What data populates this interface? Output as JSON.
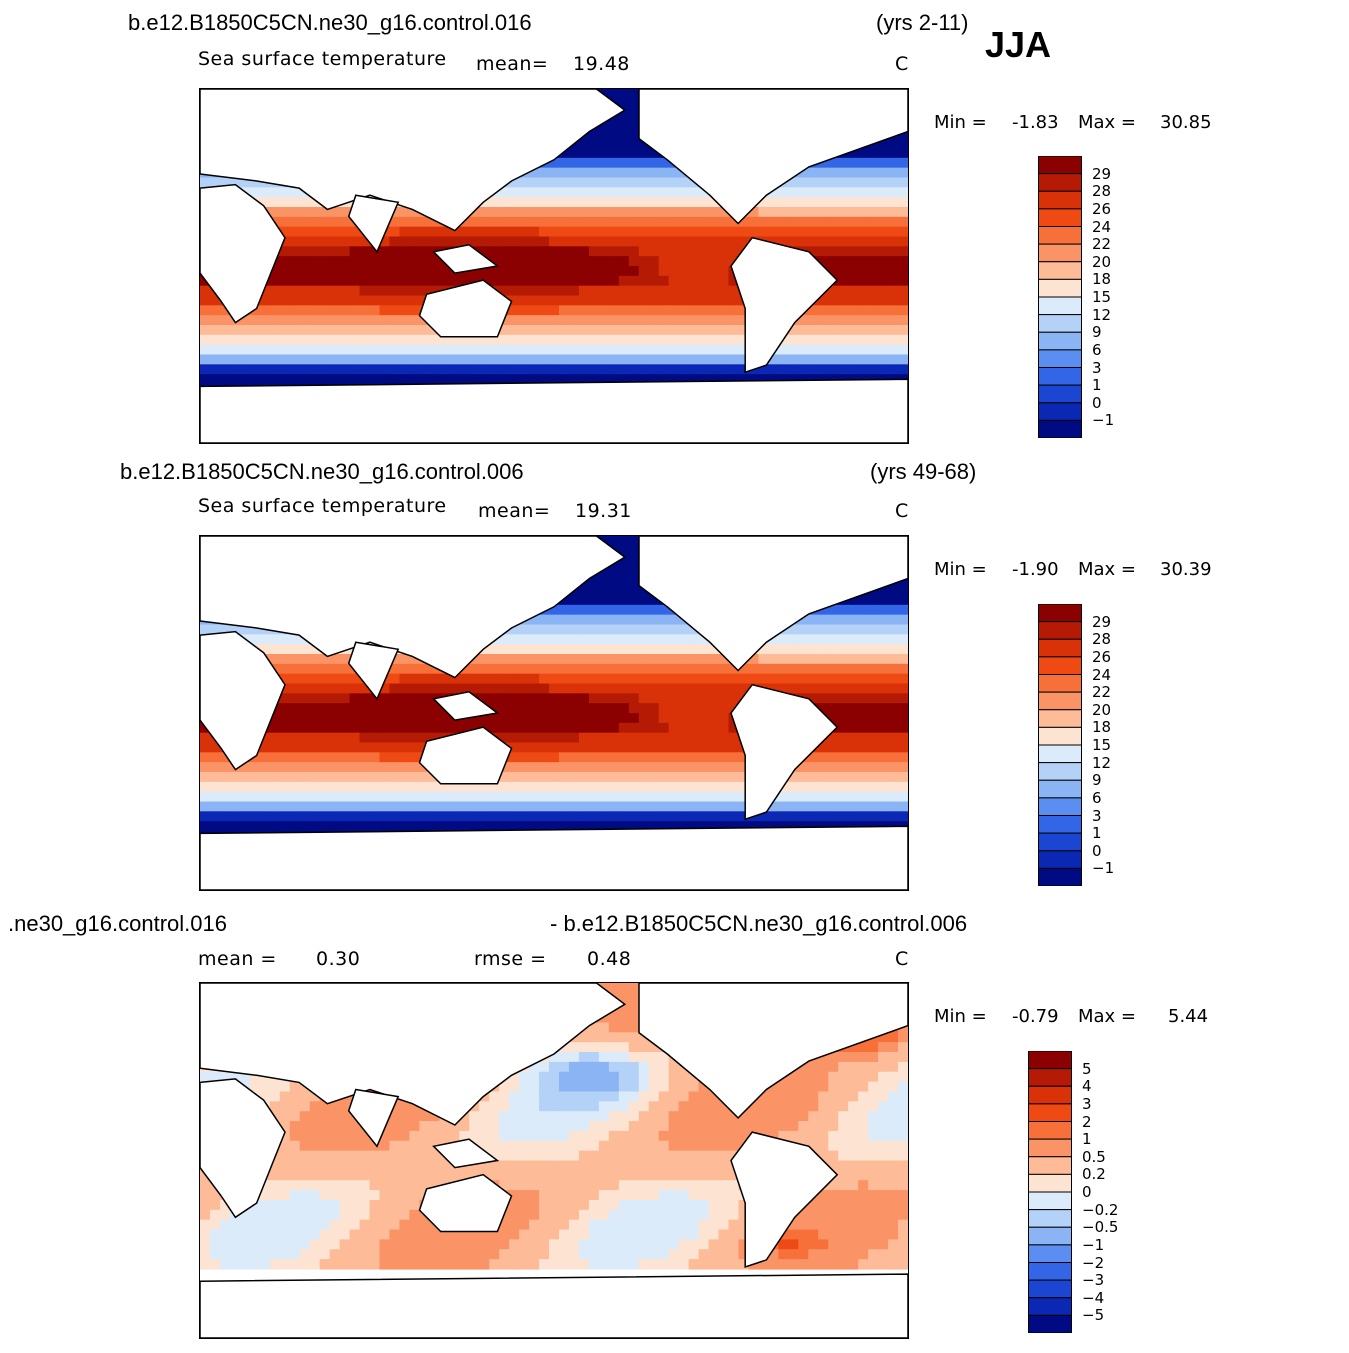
{
  "season": "JJA",
  "chart_data": [
    {
      "type": "heatmap",
      "case_title": "b.e12.B1850C5CN.ne30_g16.control.016",
      "years": "(yrs 2-11)",
      "variable": "Sea surface temperature",
      "stat1_label": "mean=",
      "stat1_value": "19.48",
      "units": "C",
      "min_label": "Min =",
      "min_value": "-1.83",
      "max_label": "Max =",
      "max_value": "30.85",
      "levels": [
        "29",
        "28",
        "26",
        "24",
        "22",
        "20",
        "18",
        "15",
        "12",
        "9",
        "6",
        "3",
        "1",
        "0",
        "−1"
      ],
      "colors": [
        "#8b0000",
        "#b41a04",
        "#d93208",
        "#f04a14",
        "#f7703a",
        "#fa9466",
        "#fdbb98",
        "#fde4d2",
        "#dbebfa",
        "#b4d2f7",
        "#8ab4f4",
        "#5a8ef0",
        "#3366e6",
        "#1a46d2",
        "#0a28b4",
        "#000a82"
      ]
    },
    {
      "type": "heatmap",
      "case_title": "b.e12.B1850C5CN.ne30_g16.control.006",
      "years": "(yrs 49-68)",
      "variable": "Sea surface temperature",
      "stat1_label": "mean=",
      "stat1_value": "19.31",
      "units": "C",
      "min_label": "Min =",
      "min_value": "-1.90",
      "max_label": "Max =",
      "max_value": "30.39",
      "levels": [
        "29",
        "28",
        "26",
        "24",
        "22",
        "20",
        "18",
        "15",
        "12",
        "9",
        "6",
        "3",
        "1",
        "0",
        "−1"
      ],
      "colors": [
        "#8b0000",
        "#b41a04",
        "#d93208",
        "#f04a14",
        "#f7703a",
        "#fa9466",
        "#fdbb98",
        "#fde4d2",
        "#dbebfa",
        "#b4d2f7",
        "#8ab4f4",
        "#5a8ef0",
        "#3366e6",
        "#1a46d2",
        "#0a28b4",
        "#000a82"
      ]
    },
    {
      "type": "heatmap",
      "case_title_left": ".ne30_g16.control.016",
      "case_title_right": "- b.e12.B1850C5CN.ne30_g16.control.006",
      "stat1_label": "mean =",
      "stat1_value": "0.30",
      "stat2_label": "rmse =",
      "stat2_value": "0.48",
      "units": "C",
      "min_label": "Min =",
      "min_value": "-0.79",
      "max_label": "Max =",
      "max_value": "5.44",
      "levels": [
        "5",
        "4",
        "3",
        "2",
        "1",
        "0.5",
        "0.2",
        "0",
        "−0.2",
        "−0.5",
        "−1",
        "−2",
        "−3",
        "−4",
        "−5"
      ],
      "colors": [
        "#8b0000",
        "#b41a04",
        "#d93208",
        "#f04a14",
        "#f7703a",
        "#fa9466",
        "#fdbb98",
        "#fde4d2",
        "#dbebfa",
        "#b4d2f7",
        "#8ab4f4",
        "#5a8ef0",
        "#3366e6",
        "#1a46d2",
        "#0a28b4",
        "#000a82"
      ]
    }
  ]
}
